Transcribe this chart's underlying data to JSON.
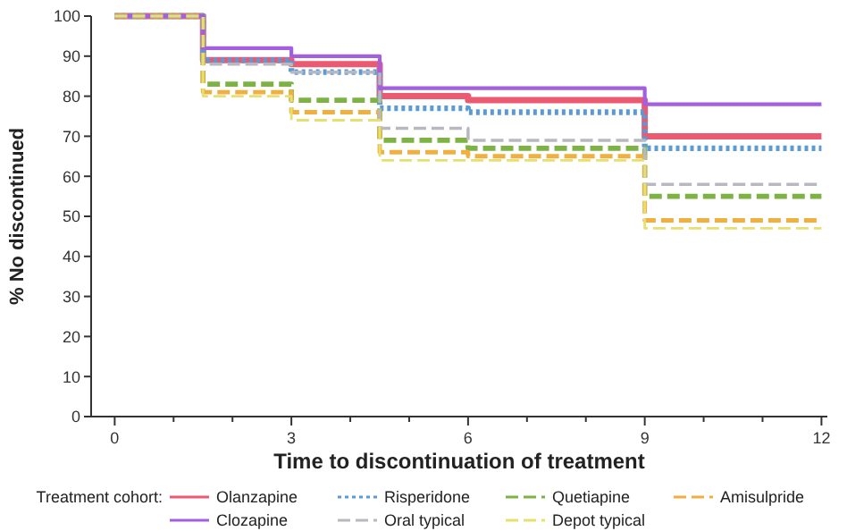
{
  "chart_data": {
    "type": "step",
    "xlabel": "Time to discontinuation of treatment",
    "ylabel": "% No discontinued",
    "legend_title": "Treatment cohort:",
    "legend": "bottom",
    "grid": false,
    "x": [
      0,
      1.5,
      3,
      4.5,
      6,
      9,
      12
    ],
    "xlim": [
      -0.4,
      12.1
    ],
    "ylim": [
      0,
      100
    ],
    "xticks": [
      0,
      {
        "value": 1,
        "label": null
      },
      {
        "value": 2,
        "label": null
      },
      3,
      {
        "value": 4,
        "label": null
      },
      {
        "value": 5,
        "label": null
      },
      6,
      {
        "value": 7,
        "label": null
      },
      {
        "value": 8,
        "label": null
      },
      9,
      {
        "value": 10,
        "label": null
      },
      {
        "value": 11,
        "label": null
      },
      12
    ],
    "yticks": [
      0,
      10,
      20,
      30,
      40,
      50,
      60,
      70,
      80,
      90,
      100
    ],
    "series": [
      {
        "name": "Olanzapine",
        "color": "#ec5a72",
        "line_style": "solid",
        "values": [
          100,
          89,
          88,
          80,
          79,
          70,
          70
        ]
      },
      {
        "name": "Risperidone",
        "color": "#5b9bd5",
        "line_style": "dotted",
        "values": [
          100,
          89,
          86,
          77,
          76,
          67,
          67
        ]
      },
      {
        "name": "Quetiapine",
        "color": "#7cb342",
        "line_style": "dashed",
        "values": [
          100,
          83,
          79,
          69,
          67,
          55,
          55
        ]
      },
      {
        "name": "Amisulpride",
        "color": "#f0b040",
        "line_style": "dashed",
        "values": [
          100,
          81,
          76,
          66,
          65,
          49,
          49
        ]
      },
      {
        "name": "Clozapine",
        "color": "#a45ee0",
        "line_style": "solid",
        "values": [
          100,
          92,
          90,
          82,
          82,
          78,
          78
        ]
      },
      {
        "name": "Oral typical",
        "color": "#b8b8c0",
        "line_style": "dashed",
        "values": [
          100,
          88,
          86,
          72,
          69,
          58,
          58
        ]
      },
      {
        "name": "Depot typical",
        "color": "#e6e070",
        "line_style": "dashed",
        "values": [
          100,
          80,
          74,
          64,
          64,
          47,
          47
        ]
      }
    ]
  }
}
